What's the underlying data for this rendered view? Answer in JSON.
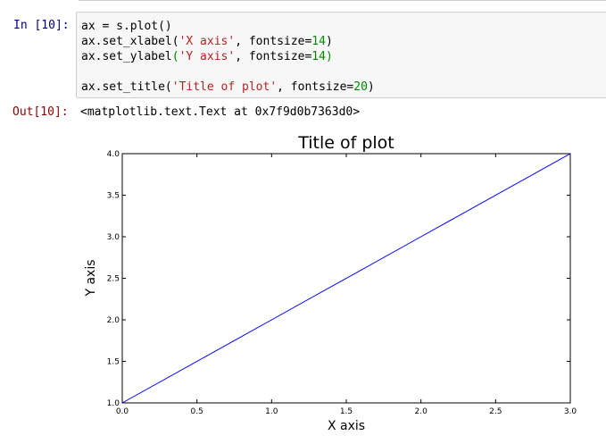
{
  "notebook": {
    "input_prompt": "In [10]:",
    "output_prompt": "Out[10]:",
    "code": {
      "line1": "ax = s.plot()",
      "line2_pre": "ax.set_xlabel(",
      "line2_str": "'X axis'",
      "line2_mid": ", fontsize=",
      "line2_num": "14",
      "line2_end": ")",
      "line3_pre": "ax.set_ylabel",
      "line3_paren_open": "(",
      "line3_str": "'Y axis'",
      "line3_mid": ", fontsize=",
      "line3_num": "14",
      "line3_end": ")",
      "line4_pre": "ax.set_title(",
      "line4_str": "'Title of plot'",
      "line4_mid": ", fontsize=",
      "line4_num": "20",
      "line4_end": ")"
    },
    "output_text": "<matplotlib.text.Text at 0x7f9d0b7363d0>"
  },
  "colors": {
    "line": "#0000ff",
    "prompt_in": "#000080",
    "prompt_out": "#8b0000",
    "string": "#ba2121",
    "number": "#008800"
  },
  "chart_data": {
    "type": "line",
    "title": "Title of plot",
    "xlabel": "X axis",
    "ylabel": "Y axis",
    "xlim": [
      0.0,
      3.0
    ],
    "ylim": [
      1.0,
      4.0
    ],
    "xticks": [
      0.0,
      0.5,
      1.0,
      1.5,
      2.0,
      2.5,
      3.0
    ],
    "xtick_labels": [
      "0.0",
      "0.5",
      "1.0",
      "1.5",
      "2.0",
      "2.5",
      "3.0"
    ],
    "yticks": [
      1.0,
      1.5,
      2.0,
      2.5,
      3.0,
      3.5,
      4.0
    ],
    "ytick_labels": [
      "1.0",
      "1.5",
      "2.0",
      "2.5",
      "3.0",
      "3.5",
      "4.0"
    ],
    "grid": false,
    "series": [
      {
        "x": [
          0,
          1,
          2,
          3
        ],
        "values": [
          1,
          2,
          3,
          4
        ]
      }
    ]
  }
}
